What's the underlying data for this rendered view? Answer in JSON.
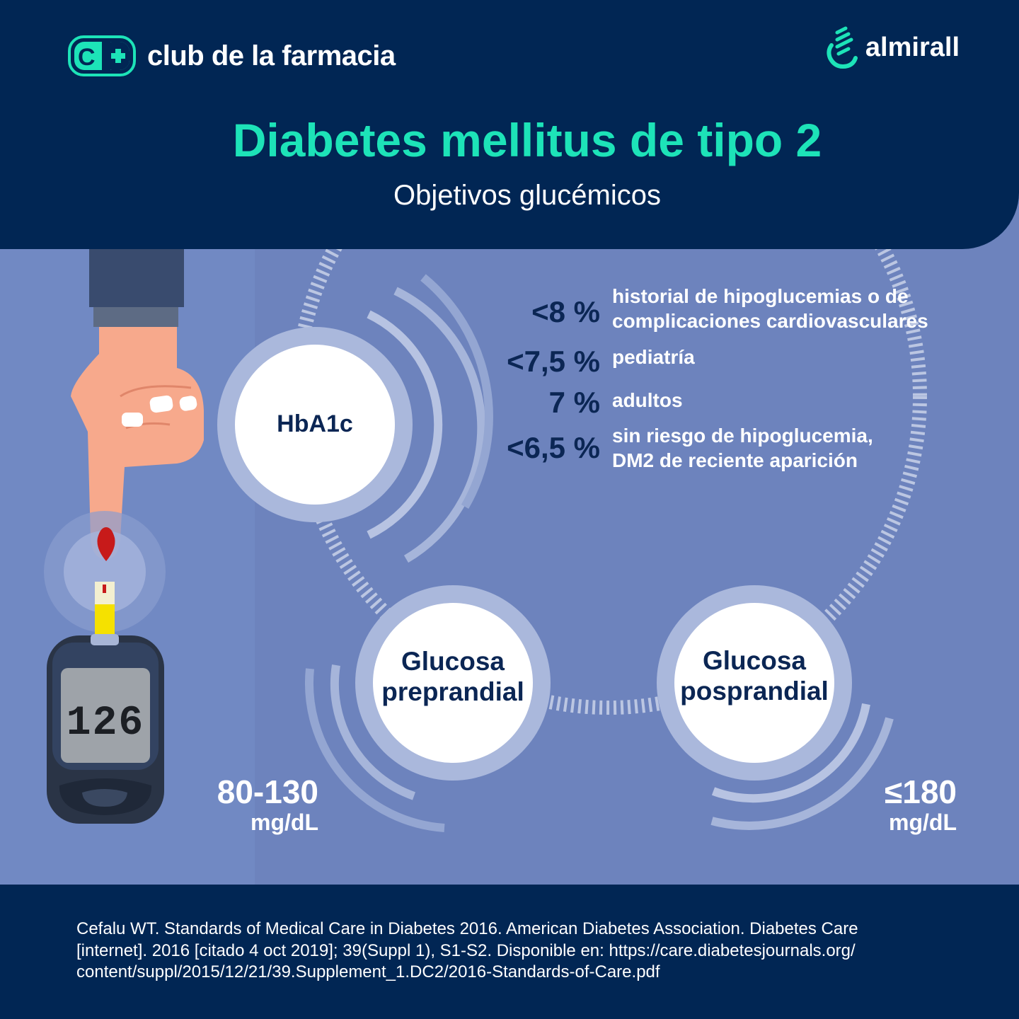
{
  "header": {
    "brand_left": "club de la farmacia",
    "brand_right": "almirall",
    "title": "Diabetes mellitus de tipo 2",
    "subtitle": "Objetivos glucémicos"
  },
  "hba1c": {
    "label": "HbA1c",
    "targets": [
      {
        "value": "<8 %",
        "line1": "historial de hipoglucemias o de",
        "line2": "complicaciones cardiovasculares"
      },
      {
        "value": "<7,5 %",
        "line1": "pediatría",
        "line2": ""
      },
      {
        "value": "7 %",
        "line1": "adultos",
        "line2": ""
      },
      {
        "value": "<6,5 %",
        "line1": "sin riesgo de hipoglucemia,",
        "line2": "DM2 de reciente aparición"
      }
    ]
  },
  "preprandial": {
    "line1": "Glucosa",
    "line2": "preprandial",
    "value": "80-130",
    "unit": "mg/dL"
  },
  "posprandial": {
    "line1": "Glucosa",
    "line2": "posprandial",
    "value": "≤180",
    "unit": "mg/dL"
  },
  "meter": {
    "reading": "126"
  },
  "reference": {
    "line1": "Cefalu WT. Standards of Medical Care in Diabetes 2016. American Diabetes Association. Diabetes Care",
    "line2": "[internet]. 2016 [citado 4 oct 2019]; 39(Suppl 1), S1-S2. Disponible en: https://care.diabetesjournals.org/",
    "line3": "content/suppl/2015/12/21/39.Supplement_1.DC2/2016-Standards-of-Care.pdf"
  },
  "colors": {
    "navy": "#012654",
    "background": "#6d83bd",
    "accent": "#1de3b8",
    "dark_text": "#0b2654"
  },
  "icons": [
    "club-de-la-farmacia-logo",
    "almirall-logo-icon",
    "hand-icon",
    "blood-drop-icon",
    "glucometer-icon",
    "test-strip-icon"
  ]
}
